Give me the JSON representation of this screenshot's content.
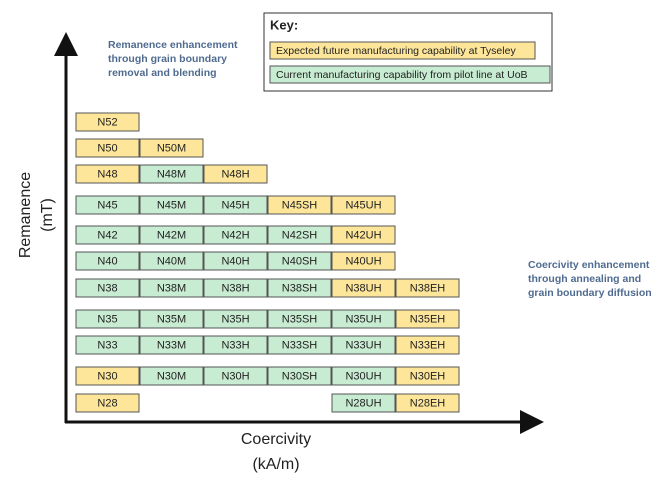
{
  "key": {
    "title": "Key:",
    "items": [
      {
        "label": "Expected future manufacturing capability at Tyseley",
        "color": "#fde699"
      },
      {
        "label": "Current manufacturing capability from pilot line at UoB",
        "color": "#c8ecd2"
      }
    ]
  },
  "annotations": [
    [
      "Remanence enhancement",
      "through grain boundary",
      "removal and blending"
    ],
    [
      "Coercivity enhancement",
      "through annealing and",
      "grain boundary diffusion"
    ]
  ],
  "y_axis_label": [
    "Remanence",
    "(mT)"
  ],
  "x_axis_label": [
    "Coercivity",
    "(kA/m)"
  ],
  "grades": [
    [
      {
        "label": "N52",
        "key": 0
      }
    ],
    [
      {
        "label": "N50",
        "key": 0
      },
      {
        "label": "N50M",
        "key": 0
      }
    ],
    [
      {
        "label": "N48",
        "key": 0
      },
      {
        "label": "N48M",
        "key": 1
      },
      {
        "label": "N48H",
        "key": 0
      }
    ],
    [
      {
        "label": "N45",
        "key": 1
      },
      {
        "label": "N45M",
        "key": 1
      },
      {
        "label": "N45H",
        "key": 1
      },
      {
        "label": "N45SH",
        "key": 0
      },
      {
        "label": "N45UH",
        "key": 0
      }
    ],
    [
      {
        "label": "N42",
        "key": 1
      },
      {
        "label": "N42M",
        "key": 1
      },
      {
        "label": "N42H",
        "key": 1
      },
      {
        "label": "N42SH",
        "key": 1
      },
      {
        "label": "N42UH",
        "key": 0
      }
    ],
    [
      {
        "label": "N40",
        "key": 1
      },
      {
        "label": "N40M",
        "key": 1
      },
      {
        "label": "N40H",
        "key": 1
      },
      {
        "label": "N40SH",
        "key": 1
      },
      {
        "label": "N40UH",
        "key": 0
      }
    ],
    [
      {
        "label": "N38",
        "key": 1
      },
      {
        "label": "N38M",
        "key": 1
      },
      {
        "label": "N38H",
        "key": 1
      },
      {
        "label": "N38SH",
        "key": 1
      },
      {
        "label": "N38UH",
        "key": 0
      },
      {
        "label": "N38EH",
        "key": 0
      }
    ],
    [
      {
        "label": "N35",
        "key": 1
      },
      {
        "label": "N35M",
        "key": 1
      },
      {
        "label": "N35H",
        "key": 1
      },
      {
        "label": "N35SH",
        "key": 1
      },
      {
        "label": "N35UH",
        "key": 1
      },
      {
        "label": "N35EH",
        "key": 0
      }
    ],
    [
      {
        "label": "N33",
        "key": 1
      },
      {
        "label": "N33M",
        "key": 1
      },
      {
        "label": "N33H",
        "key": 1
      },
      {
        "label": "N33SH",
        "key": 1
      },
      {
        "label": "N33UH",
        "key": 1
      },
      {
        "label": "N33EH",
        "key": 0
      }
    ],
    [
      {
        "label": "N30",
        "key": 0
      },
      {
        "label": "N30M",
        "key": 1
      },
      {
        "label": "N30H",
        "key": 1
      },
      {
        "label": "N30SH",
        "key": 1
      },
      {
        "label": "N30UH",
        "key": 1
      },
      {
        "label": "N30EH",
        "key": 0
      }
    ],
    [
      {
        "label": "N28",
        "key": 0
      },
      null,
      null,
      null,
      {
        "label": "N28UH",
        "key": 1
      },
      {
        "label": "N28EH",
        "key": 0
      }
    ]
  ]
}
